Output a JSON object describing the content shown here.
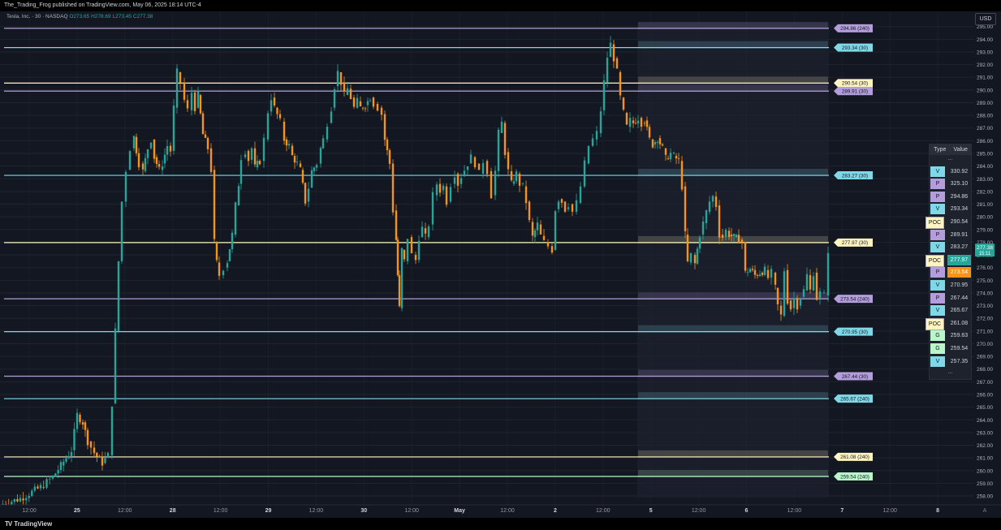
{
  "header": {
    "publish_line": "The_Trading_Frog published on TradingView.com, May 06, 2025 18:14 UTC-4"
  },
  "symbol": {
    "name": "Tesla, Inc. · 30 · NASDAQ",
    "o_label": "O",
    "o": "273.65",
    "h_label": "H",
    "h": "278.69",
    "l_label": "L",
    "l": "273.45",
    "c_label": "C",
    "c": "277.38"
  },
  "currency_button": "USD",
  "footer": {
    "logo_text": "TradingView",
    "settings_label": "A"
  },
  "legend_table": {
    "col_type": "Type",
    "col_value": "Value",
    "ellipsis": "...",
    "rows": [
      {
        "type": "V",
        "value": "330.92",
        "color": "#7fd8e8",
        "value_bg": "#1e222d"
      },
      {
        "type": "P",
        "value": "325.10",
        "color": "#b39ddb",
        "value_bg": "#1e222d"
      },
      {
        "type": "P",
        "value": "294.86",
        "color": "#b39ddb",
        "value_bg": "#1e222d"
      },
      {
        "type": "V",
        "value": "293.34",
        "color": "#7fd8e8",
        "value_bg": "#1e222d"
      },
      {
        "type": "POC",
        "value": "290.54",
        "color": "#fff4c0",
        "value_bg": "#1e222d"
      },
      {
        "type": "P",
        "value": "289.91",
        "color": "#b39ddb",
        "value_bg": "#1e222d"
      },
      {
        "type": "V",
        "value": "283.27",
        "color": "#7fd8e8",
        "value_bg": "#1e222d"
      },
      {
        "type": "POC",
        "value": "277.97",
        "color": "#fff4c0",
        "value_bg": "#26a69a"
      },
      {
        "type": "P",
        "value": "273.54",
        "color": "#b39ddb",
        "value_bg": "#f7931a"
      },
      {
        "type": "V",
        "value": "270.95",
        "color": "#7fd8e8",
        "value_bg": "#1e222d"
      },
      {
        "type": "P",
        "value": "267.44",
        "color": "#b39ddb",
        "value_bg": "#1e222d"
      },
      {
        "type": "V",
        "value": "265.67",
        "color": "#7fd8e8",
        "value_bg": "#1e222d"
      },
      {
        "type": "POC",
        "value": "261.08",
        "color": "#fff4c0",
        "value_bg": "#1e222d"
      },
      {
        "type": "G",
        "value": "259.63",
        "color": "#b9f6ca",
        "value_bg": "#1e222d"
      },
      {
        "type": "G",
        "value": "259.54",
        "color": "#b9f6ca",
        "value_bg": "#1e222d"
      },
      {
        "type": "V",
        "value": "257.35",
        "color": "#7fd8e8",
        "value_bg": "#1e222d"
      }
    ]
  },
  "chart_data": {
    "type": "candlestick",
    "ylim": [
      257.3,
      295.3
    ],
    "y_ticks": [
      "258.00",
      "259.00",
      "260.00",
      "261.00",
      "262.00",
      "263.00",
      "264.00",
      "265.00",
      "266.00",
      "267.00",
      "268.00",
      "269.00",
      "270.00",
      "271.00",
      "272.00",
      "273.00",
      "274.00",
      "275.00",
      "276.00",
      "277.00",
      "278.00",
      "279.00",
      "280.00",
      "281.00",
      "282.00",
      "283.00",
      "284.00",
      "285.00",
      "286.00",
      "287.00",
      "288.00",
      "289.00",
      "290.00",
      "291.00",
      "292.00",
      "293.00",
      "294.00",
      "295.00"
    ],
    "x_ticks": [
      "12:00",
      "25",
      "12:00",
      "28",
      "12:00",
      "29",
      "12:00",
      "30",
      "12:00",
      "May",
      "12:00",
      "2",
      "12:00",
      "5",
      "12:00",
      "6",
      "12:00",
      "7",
      "12:00",
      "8"
    ],
    "last_price": "277.38",
    "countdown": "15:11",
    "levels": [
      {
        "label": "294.86 (240)",
        "value": 294.86,
        "color": "#b39ddb"
      },
      {
        "label": "293.34 (30)",
        "value": 293.34,
        "color": "#7fd8e8"
      },
      {
        "label": "290.54 (30)",
        "value": 290.54,
        "color": "#fff4c0"
      },
      {
        "label": "289.91 (30)",
        "value": 289.91,
        "color": "#b39ddb"
      },
      {
        "label": "283.27 (30)",
        "value": 283.27,
        "color": "#7fd8e8"
      },
      {
        "label": "277.97 (30)",
        "value": 277.97,
        "color": "#fff4c0"
      },
      {
        "label": "273.54 (240)",
        "value": 273.54,
        "color": "#b39ddb"
      },
      {
        "label": "270.95 (30)",
        "value": 270.95,
        "color": "#7fd8e8"
      },
      {
        "label": "267.44 (30)",
        "value": 267.44,
        "color": "#b39ddb"
      },
      {
        "label": "265.67 (240)",
        "value": 265.67,
        "color": "#7fd8e8"
      },
      {
        "label": "261.08 (240)",
        "value": 261.08,
        "color": "#fff4c0"
      },
      {
        "label": "259.54 (240)",
        "value": 259.54,
        "color": "#b9f6ca"
      }
    ],
    "series_color_up": "#26a69a",
    "series_color_down": "#f7931a",
    "path_points": [
      [
        0,
        257.3
      ],
      [
        25,
        257.8
      ],
      [
        50,
        258.7
      ],
      [
        65,
        259.5
      ],
      [
        75,
        260.4
      ],
      [
        88,
        261.6
      ],
      [
        95,
        264.4
      ],
      [
        102,
        263.8
      ],
      [
        108,
        262.3
      ],
      [
        116,
        261.4
      ],
      [
        126,
        260.6
      ],
      [
        133,
        261.2
      ],
      [
        138,
        265.3
      ],
      [
        142,
        271.0
      ],
      [
        146,
        276.5
      ],
      [
        150,
        281.2
      ],
      [
        155,
        283.7
      ],
      [
        160,
        285.4
      ],
      [
        165,
        286.3
      ],
      [
        171,
        284.2
      ],
      [
        176,
        283.6
      ],
      [
        182,
        285.4
      ],
      [
        186,
        286.1
      ],
      [
        190,
        284.7
      ],
      [
        196,
        283.7
      ],
      [
        200,
        284.2
      ],
      [
        206,
        285.6
      ],
      [
        210,
        285.2
      ],
      [
        214,
        288.6
      ],
      [
        218,
        291.4
      ],
      [
        222,
        290.6
      ],
      [
        227,
        289.2
      ],
      [
        231,
        288.4
      ],
      [
        236,
        289.8
      ],
      [
        240,
        288.6
      ],
      [
        244,
        289.6
      ],
      [
        250,
        286.5
      ],
      [
        256,
        285.4
      ],
      [
        260,
        283.7
      ],
      [
        264,
        278.0
      ],
      [
        267,
        276.4
      ],
      [
        270,
        275.4
      ],
      [
        275,
        276.0
      ],
      [
        280,
        276.5
      ],
      [
        286,
        278.6
      ],
      [
        290,
        280.9
      ],
      [
        294,
        282.6
      ],
      [
        297,
        284.7
      ],
      [
        302,
        285.2
      ],
      [
        306,
        284.5
      ],
      [
        310,
        285.4
      ],
      [
        314,
        283.9
      ],
      [
        320,
        284.4
      ],
      [
        325,
        286.1
      ],
      [
        330,
        288.3
      ],
      [
        334,
        289.4
      ],
      [
        338,
        288.6
      ],
      [
        345,
        287.5
      ],
      [
        350,
        286.1
      ],
      [
        356,
        285.6
      ],
      [
        360,
        284.8
      ],
      [
        366,
        284.2
      ],
      [
        370,
        283.7
      ],
      [
        376,
        281.2
      ],
      [
        380,
        282.3
      ],
      [
        384,
        283.6
      ],
      [
        390,
        284.2
      ],
      [
        395,
        285.4
      ],
      [
        398,
        286.1
      ],
      [
        403,
        287.4
      ],
      [
        408,
        288.6
      ],
      [
        412,
        290.3
      ],
      [
        416,
        291.4
      ],
      [
        420,
        290.6
      ],
      [
        424,
        289.6
      ],
      [
        428,
        290.1
      ],
      [
        432,
        289.4
      ],
      [
        436,
        288.6
      ],
      [
        440,
        289.1
      ],
      [
        444,
        288.6
      ],
      [
        450,
        288.8
      ],
      [
        456,
        289.4
      ],
      [
        460,
        288.9
      ],
      [
        465,
        288.6
      ],
      [
        470,
        288.1
      ],
      [
        474,
        286.1
      ],
      [
        480,
        284.2
      ],
      [
        484,
        280.5
      ],
      [
        488,
        278.2
      ],
      [
        490,
        275.4
      ],
      [
        492,
        272.8
      ],
      [
        495,
        277.4
      ],
      [
        498,
        276.5
      ],
      [
        502,
        278.4
      ],
      [
        507,
        277.0
      ],
      [
        512,
        276.6
      ],
      [
        516,
        278.4
      ],
      [
        520,
        279.1
      ],
      [
        524,
        278.4
      ],
      [
        528,
        279.4
      ],
      [
        533,
        281.7
      ],
      [
        538,
        282.6
      ],
      [
        542,
        282.1
      ],
      [
        546,
        282.4
      ],
      [
        550,
        281.2
      ],
      [
        555,
        282.6
      ],
      [
        560,
        283.4
      ],
      [
        564,
        282.6
      ],
      [
        568,
        283.2
      ],
      [
        572,
        283.7
      ],
      [
        576,
        284.2
      ],
      [
        580,
        284.7
      ],
      [
        585,
        284.2
      ],
      [
        590,
        283.4
      ],
      [
        595,
        284.4
      ],
      [
        600,
        283.6
      ],
      [
        605,
        281.7
      ],
      [
        610,
        283.6
      ],
      [
        614,
        286.6
      ],
      [
        618,
        287.4
      ],
      [
        622,
        285.1
      ],
      [
        626,
        283.6
      ],
      [
        630,
        282.6
      ],
      [
        636,
        283.4
      ],
      [
        640,
        282.6
      ],
      [
        644,
        282.4
      ],
      [
        648,
        281.2
      ],
      [
        652,
        279.6
      ],
      [
        656,
        278.4
      ],
      [
        662,
        279.4
      ],
      [
        666,
        278.5
      ],
      [
        670,
        278.0
      ],
      [
        675,
        277.7
      ],
      [
        680,
        277.4
      ],
      [
        684,
        280.6
      ],
      [
        688,
        281.4
      ],
      [
        692,
        281.2
      ],
      [
        696,
        280.6
      ],
      [
        700,
        281.0
      ],
      [
        705,
        280.4
      ],
      [
        710,
        281.1
      ],
      [
        715,
        282.4
      ],
      [
        720,
        284.2
      ],
      [
        725,
        285.6
      ],
      [
        730,
        286.1
      ],
      [
        735,
        286.6
      ],
      [
        740,
        288.4
      ],
      [
        744,
        290.6
      ],
      [
        748,
        292.6
      ],
      [
        752,
        293.6
      ],
      [
        756,
        292.5
      ],
      [
        760,
        291.4
      ],
      [
        764,
        289.4
      ],
      [
        768,
        288.2
      ],
      [
        772,
        287.1
      ],
      [
        776,
        287.6
      ],
      [
        780,
        287.4
      ],
      [
        786,
        287.8
      ],
      [
        790,
        287.4
      ],
      [
        794,
        287.6
      ],
      [
        800,
        286.1
      ],
      [
        804,
        285.7
      ],
      [
        810,
        286.2
      ],
      [
        816,
        285.4
      ],
      [
        820,
        284.6
      ],
      [
        826,
        285.0
      ],
      [
        830,
        284.8
      ],
      [
        836,
        284.4
      ],
      [
        840,
        282.4
      ],
      [
        844,
        278.6
      ],
      [
        847,
        276.4
      ],
      [
        851,
        277.0
      ],
      [
        856,
        276.3
      ],
      [
        862,
        278.6
      ],
      [
        866,
        279.5
      ],
      [
        870,
        280.4
      ],
      [
        874,
        281.2
      ],
      [
        878,
        281.6
      ],
      [
        882,
        280.9
      ],
      [
        886,
        278.6
      ],
      [
        890,
        278.4
      ],
      [
        894,
        278.9
      ],
      [
        898,
        278.6
      ],
      [
        904,
        278.4
      ],
      [
        910,
        278.2
      ],
      [
        914,
        278.0
      ],
      [
        918,
        275.6
      ],
      [
        924,
        275.9
      ],
      [
        930,
        275.4
      ],
      [
        936,
        275.6
      ],
      [
        942,
        275.8
      ],
      [
        946,
        275.2
      ],
      [
        950,
        275.6
      ],
      [
        955,
        274.4
      ],
      [
        958,
        273.0
      ],
      [
        962,
        272.2
      ],
      [
        966,
        275.8
      ],
      [
        970,
        273.4
      ],
      [
        974,
        272.8
      ],
      [
        978,
        273.6
      ],
      [
        982,
        273.0
      ],
      [
        986,
        273.7
      ],
      [
        990,
        274.2
      ],
      [
        994,
        275.4
      ],
      [
        998,
        274.2
      ],
      [
        1002,
        275.6
      ],
      [
        1006,
        273.6
      ],
      [
        1010,
        274.0
      ],
      [
        1015,
        273.8
      ],
      [
        1020,
        277.38
      ]
    ]
  }
}
